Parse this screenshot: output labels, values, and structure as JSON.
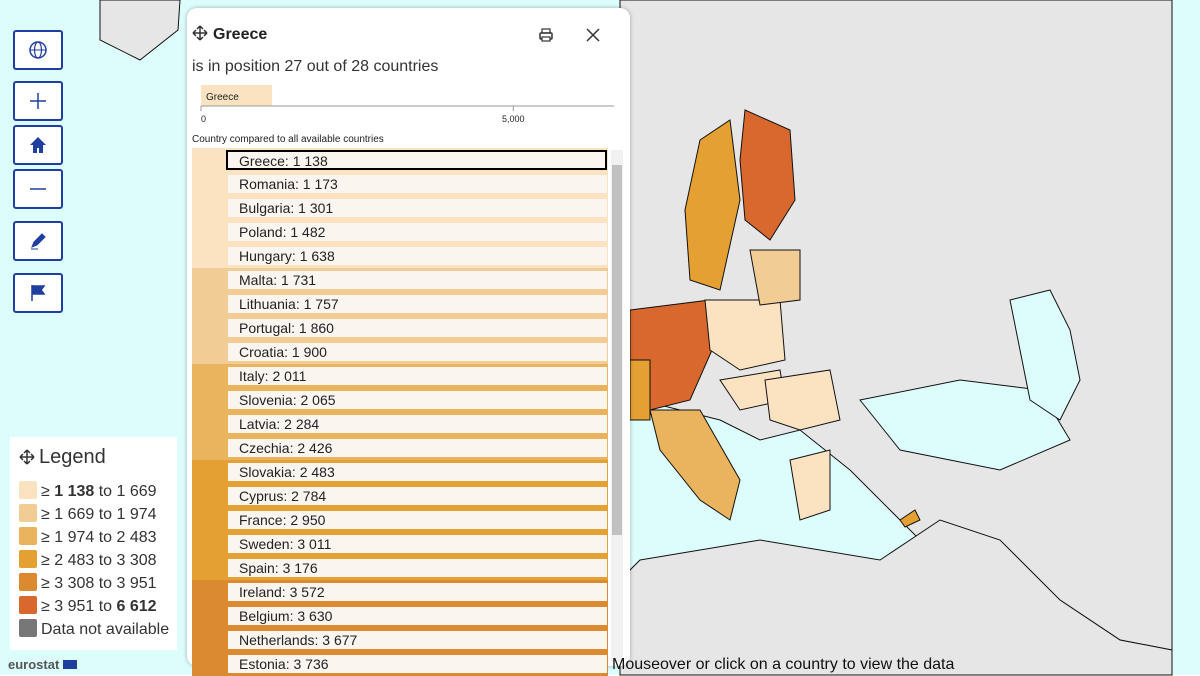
{
  "popup": {
    "title": "Greece",
    "position_text": "is in position 27 out of 28 countries",
    "bar": {
      "label": "Greece",
      "value": 1138,
      "color": "#fbe3c2",
      "xlim": [
        0,
        6612
      ],
      "xticks": [
        0,
        {
          "value": 5000,
          "label": "5,000"
        }
      ]
    },
    "compare_label": "Country compared to all available countries",
    "selected_row": 0,
    "rows": [
      {
        "label": "Greece: 1 138",
        "class": 0
      },
      {
        "label": "Romania: 1 173",
        "class": 0
      },
      {
        "label": "Bulgaria: 1 301",
        "class": 0
      },
      {
        "label": "Poland: 1 482",
        "class": 0
      },
      {
        "label": "Hungary: 1 638",
        "class": 0
      },
      {
        "label": "Malta: 1 731",
        "class": 1
      },
      {
        "label": "Lithuania: 1 757",
        "class": 1
      },
      {
        "label": "Portugal: 1 860",
        "class": 1
      },
      {
        "label": "Croatia: 1 900",
        "class": 1
      },
      {
        "label": "Italy: 2 011",
        "class": 2
      },
      {
        "label": "Slovenia: 2 065",
        "class": 2
      },
      {
        "label": "Latvia: 2 284",
        "class": 2
      },
      {
        "label": "Czechia: 2 426",
        "class": 2
      },
      {
        "label": "Slovakia: 2 483",
        "class": 3
      },
      {
        "label": "Cyprus: 2 784",
        "class": 3
      },
      {
        "label": "France: 2 950",
        "class": 3
      },
      {
        "label": "Sweden: 3 011",
        "class": 3
      },
      {
        "label": "Spain: 3 176",
        "class": 3
      },
      {
        "label": "Ireland: 3 572",
        "class": 4
      },
      {
        "label": "Belgium: 3 630",
        "class": 4
      },
      {
        "label": "Netherlands: 3 677",
        "class": 4
      },
      {
        "label": "Estonia: 3 736",
        "class": 4
      }
    ]
  },
  "legend": {
    "title": "Legend",
    "symbol": "≥",
    "connector": "to",
    "classes": [
      {
        "from": "1 138",
        "to": "1 669",
        "color": "#fbe3c2"
      },
      {
        "from": "1 669",
        "to": "1 974",
        "color": "#f2cc95"
      },
      {
        "from": "1 974",
        "to": "2 483",
        "color": "#eab35e"
      },
      {
        "from": "2 483",
        "to": "3 308",
        "color": "#e5a033"
      },
      {
        "from": "3 308",
        "to": "3 951",
        "color": "#dc8a30"
      },
      {
        "from": "3 951",
        "to": "6 612",
        "color": "#d9682e"
      }
    ],
    "na": {
      "label": "Data not available",
      "color": "#777777"
    }
  },
  "footer": {
    "brand": "eurostat",
    "hint": "Mouseover or click on a country to view the data"
  }
}
